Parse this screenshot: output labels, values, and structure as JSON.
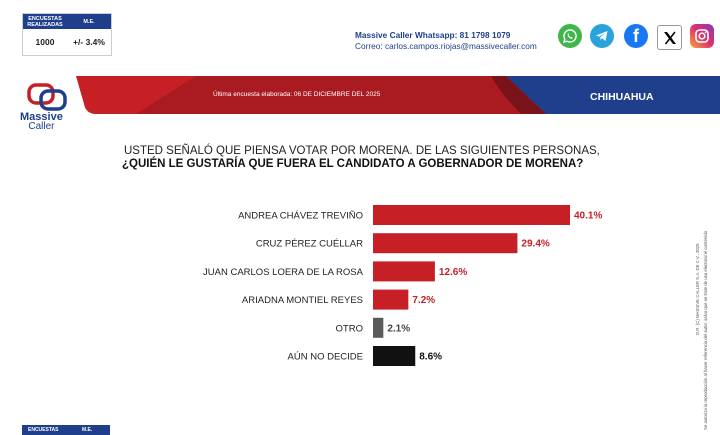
{
  "stats": {
    "head_surveys": "ENCUESTAS REALIZADAS",
    "head_me": "M.E.",
    "surveys": "1000",
    "me": "+/- 3.4%",
    "bottom_head_surveys": "ENCUESTAS",
    "bottom_head_me": "M.E."
  },
  "contact": {
    "whatsapp": "Massive Caller Whatsapp: 81 1798 1079",
    "email": "Correo: carlos.campos.riojas@massivecaller.com"
  },
  "social": [
    "whatsapp-icon",
    "telegram-icon",
    "facebook-icon",
    "x-icon",
    "instagram-icon"
  ],
  "banner": {
    "date": "Última encuesta elaborada: 06 DE DICIEMBRE DEL 2025",
    "region": "CHIHUAHUA"
  },
  "logo": {
    "line1": "Massive",
    "line2": "Caller"
  },
  "question": {
    "line1": "USTED SEÑALÓ QUE PIENSA VOTAR POR MORENA. DE LAS SIGUIENTES PERSONAS,",
    "line2": "¿QUIÉN LE GUSTARÍA QUE FUERA EL CANDIDATO A GOBERNADOR DE MORENA?"
  },
  "side_text": {
    "line1": "D.R. (C) MASSIVE CALLER S.A. DE C.V., 2025",
    "line2": "Se autoriza la reproducción al hacer referencia del autor, salvo que se trate de uso electoral el contenido"
  },
  "colors": {
    "red": "#c62026",
    "gray": "#5a5a5a",
    "black": "#111111",
    "navy": "#1f3f8c"
  },
  "chart_data": {
    "type": "bar",
    "orientation": "horizontal",
    "categories": [
      "ANDREA CHÁVEZ TREVIÑO",
      "CRUZ PÉREZ CUÉLLAR",
      "JUAN CARLOS LOERA DE LA ROSA",
      "ARIADNA MONTIEL REYES",
      "OTRO",
      "AÚN NO DECIDE"
    ],
    "values": [
      40.1,
      29.4,
      12.6,
      7.2,
      2.1,
      8.6
    ],
    "labels": [
      "40.1%",
      "29.4%",
      "12.6%",
      "7.2%",
      "2.1%",
      "8.6%"
    ],
    "bar_colors": [
      "#c62026",
      "#c62026",
      "#c62026",
      "#c62026",
      "#5a5a5a",
      "#111111"
    ],
    "label_colors": [
      "#c62026",
      "#c62026",
      "#c62026",
      "#c62026",
      "#444444",
      "#111111"
    ],
    "title": "USTED SEÑALÓ QUE PIENSA VOTAR POR MORENA. DE LAS SIGUIENTES PERSONAS, ¿QUIÉN LE GUSTARÍA QUE FUERA EL CANDIDATO A GOBERNADOR DE MORENA?",
    "xlim": [
      0,
      40.1
    ],
    "unit": "%"
  }
}
